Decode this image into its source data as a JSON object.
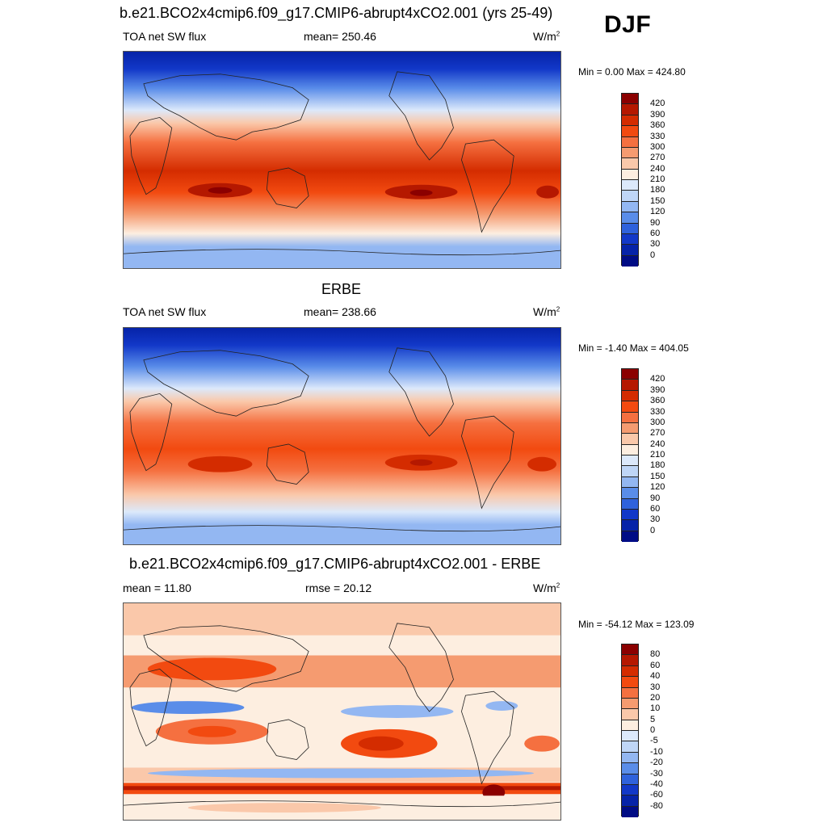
{
  "season": "DJF",
  "panels": [
    {
      "title": "b.e21.BCO2x4cmip6.f09_g17.CMIP6-abrupt4xCO2.001 (yrs 25-49)",
      "left": "TOA net SW flux",
      "center": "mean= 250.46",
      "units_base": "W/m",
      "units_exp": "2",
      "minmax": "Min =   0.00 Max = 424.80",
      "colorbar": {
        "labels": [
          "420",
          "390",
          "360",
          "330",
          "300",
          "270",
          "240",
          "210",
          "180",
          "150",
          "120",
          "90",
          "60",
          "30",
          "0"
        ],
        "colors": [
          "#8b0000",
          "#b51800",
          "#d42c00",
          "#f24a10",
          "#f57040",
          "#f59b70",
          "#fac8aa",
          "#fdeee0",
          "#dce9fb",
          "#bfd6f7",
          "#93b7f2",
          "#5a8de9",
          "#2f62dc",
          "#1238c8",
          "#0623a8",
          "#000c85"
        ]
      }
    },
    {
      "title": "ERBE",
      "left": "TOA net SW flux",
      "center": "mean= 238.66",
      "units_base": "W/m",
      "units_exp": "2",
      "minmax": "Min =  -1.40 Max = 404.05",
      "colorbar": {
        "labels": [
          "420",
          "390",
          "360",
          "330",
          "300",
          "270",
          "240",
          "210",
          "180",
          "150",
          "120",
          "90",
          "60",
          "30",
          "0"
        ],
        "colors": [
          "#8b0000",
          "#b51800",
          "#d42c00",
          "#f24a10",
          "#f57040",
          "#f59b70",
          "#fac8aa",
          "#fdeee0",
          "#dce9fb",
          "#bfd6f7",
          "#93b7f2",
          "#5a8de9",
          "#2f62dc",
          "#1238c8",
          "#0623a8",
          "#000c85"
        ]
      }
    },
    {
      "title": "b.e21.BCO2x4cmip6.f09_g17.CMIP6-abrupt4xCO2.001 - ERBE",
      "left": "mean =  11.80",
      "center": "rmse =  20.12",
      "units_base": "W/m",
      "units_exp": "2",
      "minmax": "Min = -54.12 Max = 123.09",
      "colorbar": {
        "labels": [
          "80",
          "60",
          "40",
          "30",
          "20",
          "10",
          "5",
          "0",
          "-5",
          "-10",
          "-20",
          "-30",
          "-40",
          "-60",
          "-80"
        ],
        "colors": [
          "#8b0000",
          "#b51800",
          "#d42c00",
          "#f24a10",
          "#f57040",
          "#f59b70",
          "#fac8aa",
          "#fdeee0",
          "#dce9fb",
          "#bfd6f7",
          "#93b7f2",
          "#5a8de9",
          "#2f62dc",
          "#1238c8",
          "#0623a8",
          "#000c85"
        ]
      }
    }
  ]
}
